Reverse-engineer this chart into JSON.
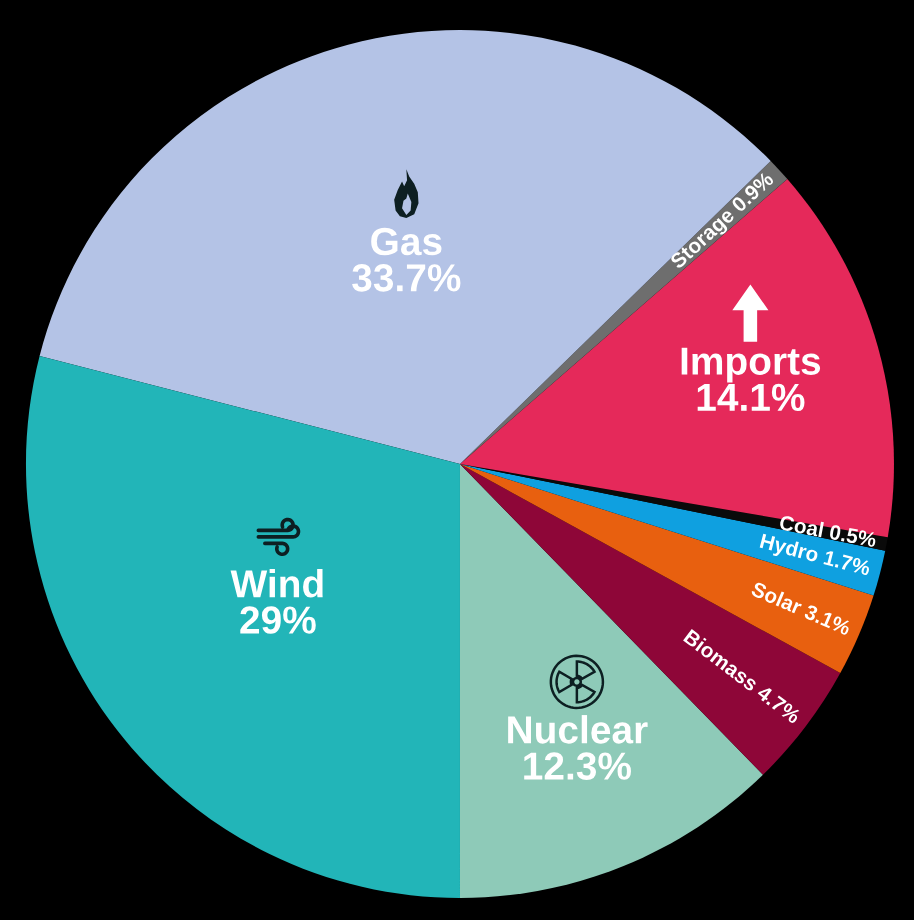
{
  "chart_data": {
    "type": "pie",
    "categories": [
      "Nuclear",
      "Biomass",
      "Solar",
      "Hydro",
      "Coal",
      "Imports",
      "Storage",
      "Gas",
      "Wind"
    ],
    "values": [
      12.3,
      4.7,
      3.1,
      1.7,
      0.5,
      14.1,
      0.9,
      33.7,
      29
    ],
    "colors": [
      "#8ecab8",
      "#8e0638",
      "#e8600f",
      "#0fa0e0",
      "#0a0a0a",
      "#e5295a",
      "#6e6e6e",
      "#b4c3e6",
      "#22b5b8"
    ],
    "value_labels": [
      "12.3%",
      "4.7%",
      "3.1%",
      "1.7%",
      "0.5%",
      "14.1%",
      "0.9%",
      "33.7%",
      "29%"
    ]
  }
}
